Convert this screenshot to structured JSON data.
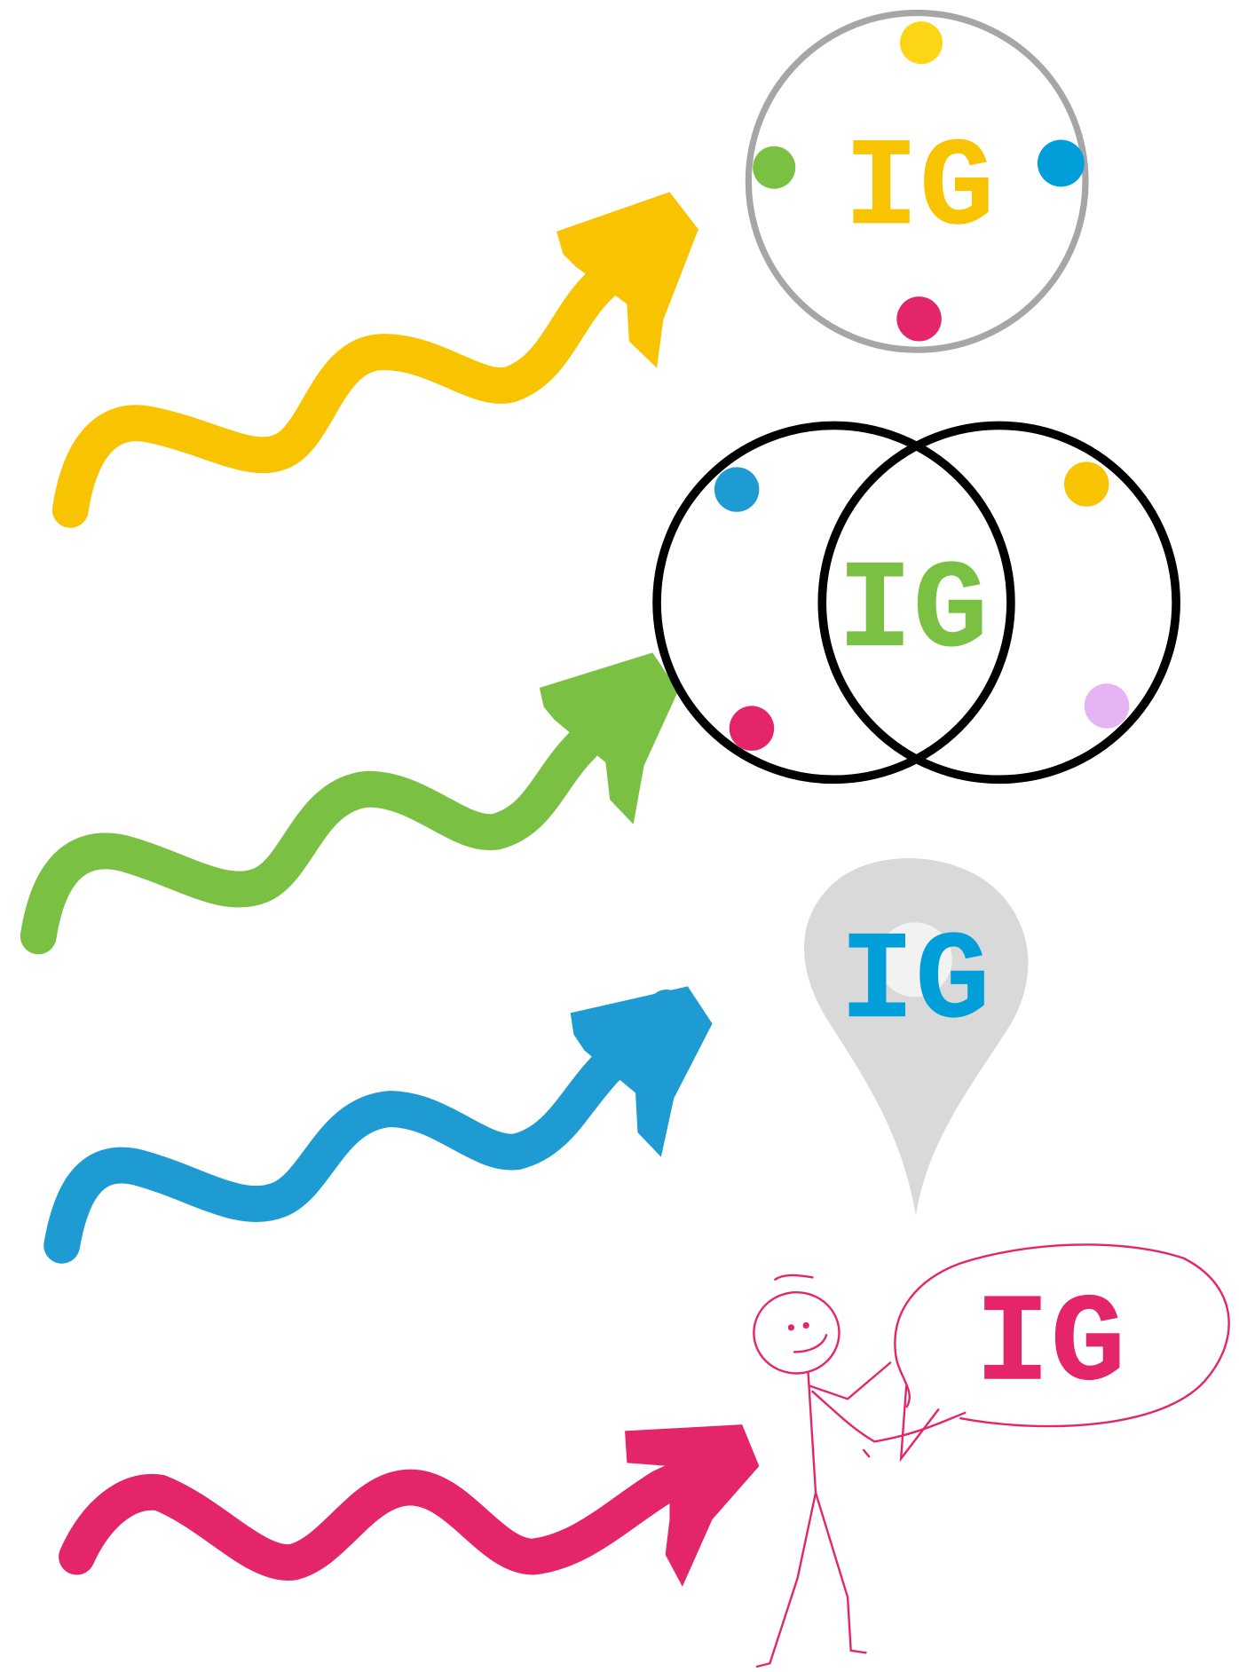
{
  "panels": [
    {
      "label": "IG"
    },
    {
      "label": "IG"
    },
    {
      "label": "IG"
    },
    {
      "label": "IG"
    }
  ]
}
